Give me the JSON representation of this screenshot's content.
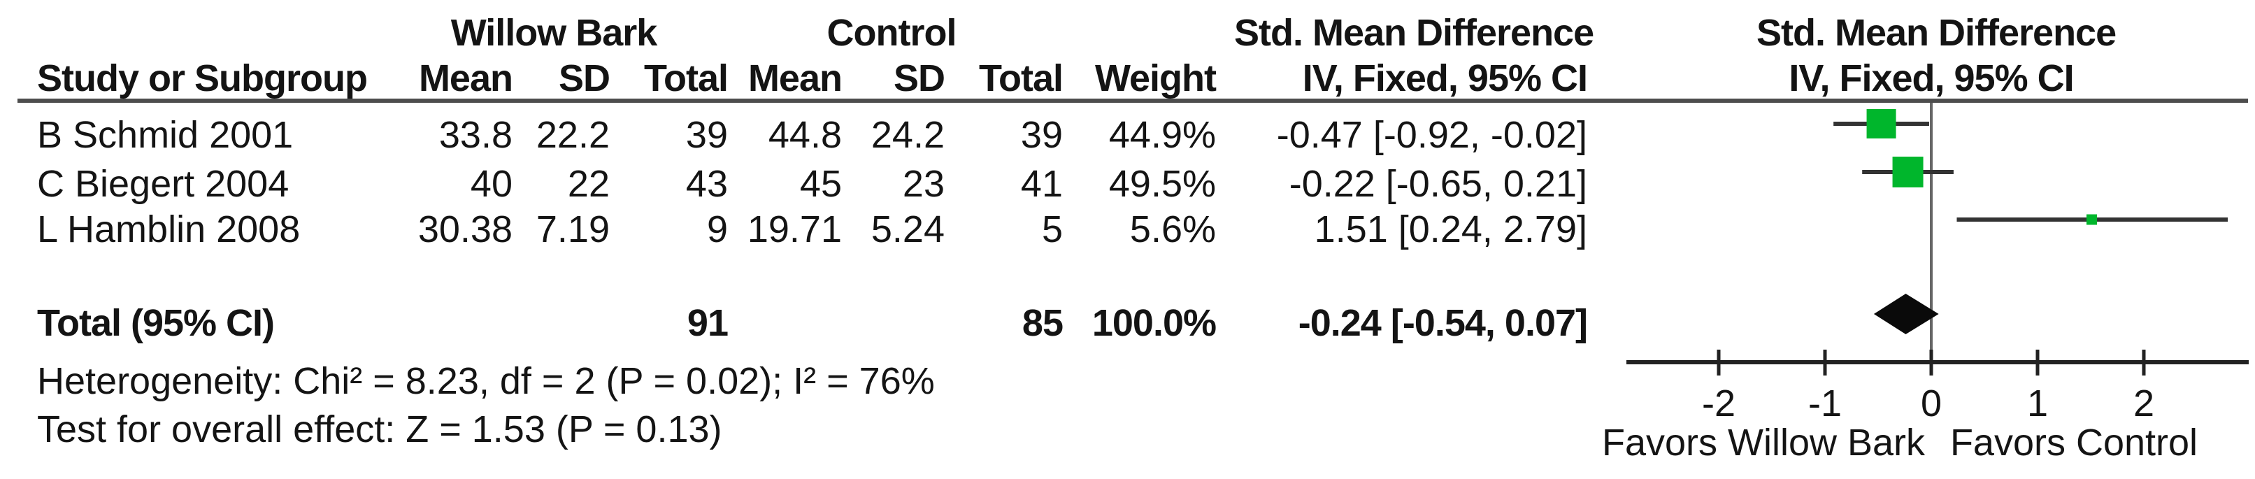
{
  "header": {
    "group1": "Willow Bark",
    "group2": "Control",
    "smd_text_col": "Std. Mean Difference",
    "smd_plot_col": "Std. Mean Difference",
    "study": "Study or Subgroup",
    "mean1": "Mean",
    "sd1": "SD",
    "total1": "Total",
    "mean2": "Mean",
    "sd2": "SD",
    "total2": "Total",
    "weight": "Weight",
    "method_text_col": "IV, Fixed, 95% CI",
    "method_plot_col": "IV, Fixed, 95% CI"
  },
  "rows": [
    {
      "study": "B Schmid 2001",
      "wb_mean": "33.8",
      "wb_sd": "22.2",
      "wb_total": "39",
      "c_mean": "44.8",
      "c_sd": "24.2",
      "c_total": "39",
      "weight": "44.9%",
      "smd_ci": "-0.47 [-0.92, -0.02]"
    },
    {
      "study": "C Biegert 2004",
      "wb_mean": "40",
      "wb_sd": "22",
      "wb_total": "43",
      "c_mean": "45",
      "c_sd": "23",
      "c_total": "41",
      "weight": "49.5%",
      "smd_ci": "-0.22 [-0.65, 0.21]"
    },
    {
      "study": "L Hamblin 2008",
      "wb_mean": "30.38",
      "wb_sd": "7.19",
      "wb_total": "9",
      "c_mean": "19.71",
      "c_sd": "5.24",
      "c_total": "5",
      "weight": "5.6%",
      "smd_ci": "1.51 [0.24, 2.79]"
    }
  ],
  "total_row": {
    "label": "Total (95% CI)",
    "wb_total": "91",
    "c_total": "85",
    "weight": "100.0%",
    "smd_ci": "-0.24 [-0.54, 0.07]"
  },
  "footnotes": {
    "heterogeneity": "Heterogeneity: Chi² = 8.23, df = 2 (P = 0.02); I² = 76%",
    "overall_effect": "Test for overall effect: Z = 1.53 (P = 0.13)"
  },
  "axis": {
    "ticks": [
      "-2",
      "-1",
      "0",
      "1",
      "2"
    ],
    "favors_left": "Favors Willow Bark",
    "favors_right": "Favors Control"
  },
  "colors": {
    "marker_green": "#00b62c",
    "diamond_black": "#0a0a0a",
    "ci_line": "#333333",
    "axis_line": "#222222",
    "zero_line": "#666666",
    "header_rule": "#4d4d4d"
  },
  "chart_data": {
    "type": "forest",
    "effect_measure": "Std. Mean Difference",
    "model": "IV, Fixed, 95% CI",
    "studies": [
      {
        "name": "B Schmid 2001",
        "treatment_mean": 33.8,
        "treatment_sd": 22.2,
        "treatment_n": 39,
        "control_mean": 44.8,
        "control_sd": 24.2,
        "control_n": 39,
        "weight_pct": 44.9,
        "smd": -0.47,
        "ci_low": -0.92,
        "ci_high": -0.02
      },
      {
        "name": "C Biegert 2004",
        "treatment_mean": 40,
        "treatment_sd": 22,
        "treatment_n": 43,
        "control_mean": 45,
        "control_sd": 23,
        "control_n": 41,
        "weight_pct": 49.5,
        "smd": -0.22,
        "ci_low": -0.65,
        "ci_high": 0.21
      },
      {
        "name": "L Hamblin 2008",
        "treatment_mean": 30.38,
        "treatment_sd": 7.19,
        "treatment_n": 9,
        "control_mean": 19.71,
        "control_sd": 5.24,
        "control_n": 5,
        "weight_pct": 5.6,
        "smd": 1.51,
        "ci_low": 0.24,
        "ci_high": 2.79
      }
    ],
    "total": {
      "treatment_n": 91,
      "control_n": 85,
      "weight_pct": 100.0,
      "smd": -0.24,
      "ci_low": -0.54,
      "ci_high": 0.07
    },
    "heterogeneity": {
      "chi2": 8.23,
      "df": 2,
      "p": 0.02,
      "i2_pct": 76
    },
    "overall_effect": {
      "z": 1.53,
      "p": 0.13
    },
    "xaxis": {
      "ticks": [
        -2,
        -1,
        0,
        1,
        2
      ],
      "range": [
        -2.87,
        2.99
      ],
      "label_left": "Favors Willow Bark",
      "label_right": "Favors Control",
      "gridlines": false
    }
  }
}
